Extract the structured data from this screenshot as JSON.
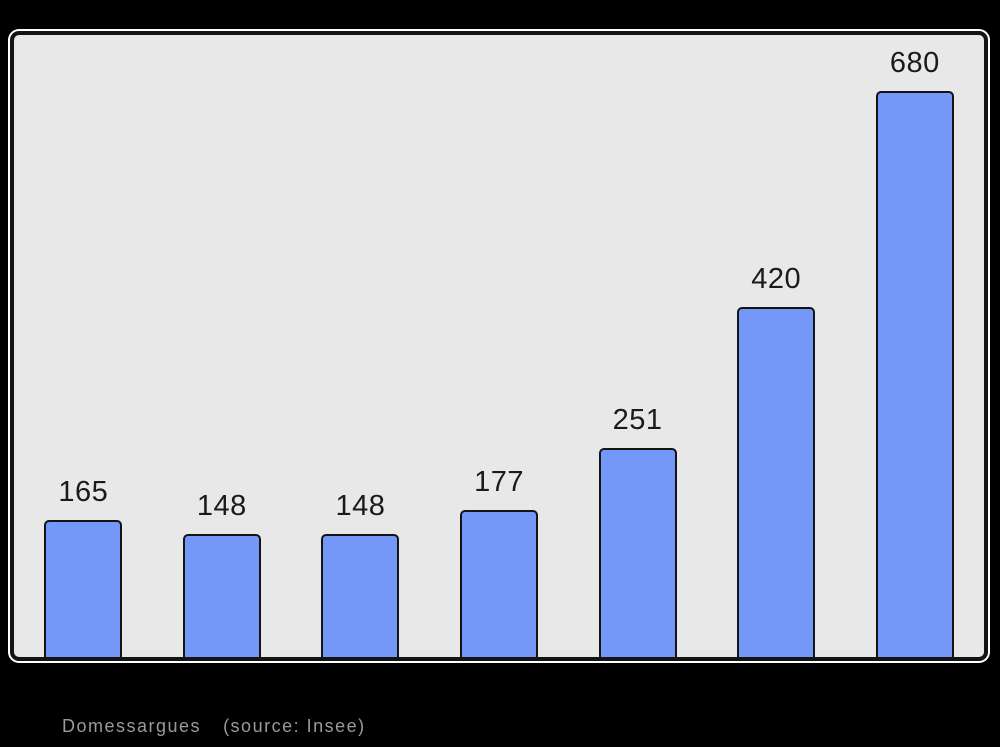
{
  "page": {
    "background": "#000000"
  },
  "caption": {
    "commune": "Domessargues",
    "source": "(source: Insee)",
    "color": "#9a9a9a"
  },
  "chart_data": {
    "type": "bar",
    "title": "",
    "xlabel": "",
    "ylabel": "",
    "categories": [],
    "values": [
      165,
      148,
      148,
      177,
      251,
      420,
      680
    ],
    "data_labels": [
      "165",
      "148",
      "148",
      "177",
      "251",
      "420",
      "680"
    ],
    "ylim": [
      0,
      746
    ],
    "grid": false,
    "legend": false,
    "x_axis_tick_labels_visible": false,
    "y_axis_visible": false,
    "colors": {
      "bar_fill": "#7398f8",
      "bar_border": "#141414",
      "plot_background": "#e8e8e8",
      "frame_border": "#141414",
      "frame_outline": "#ffffff",
      "label_color": "#1a1a1a"
    }
  }
}
